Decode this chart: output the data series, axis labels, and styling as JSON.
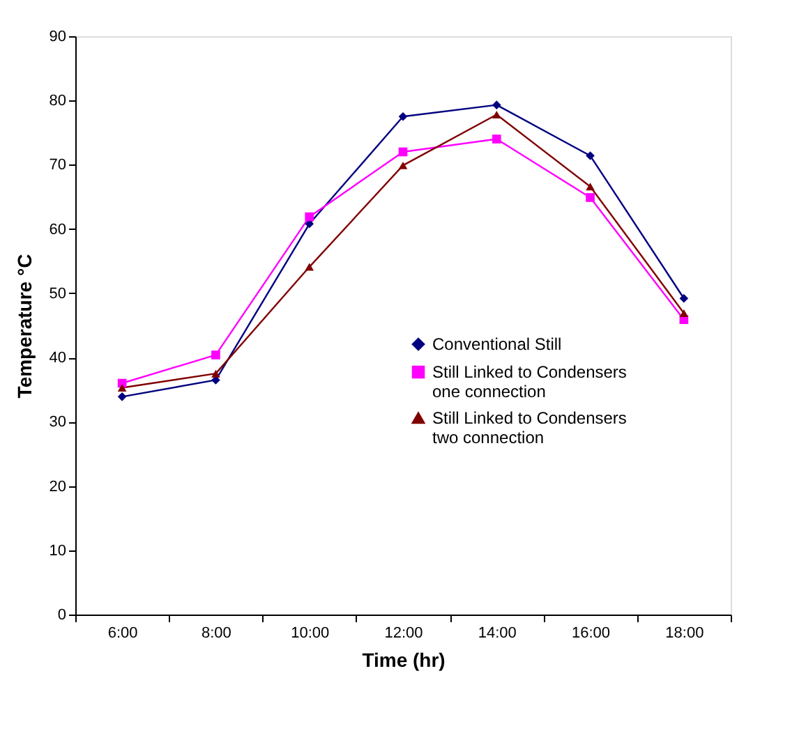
{
  "chart_data": {
    "type": "line",
    "xlabel": "Time (hr)",
    "ylabel": "Temperature  °C",
    "categories": [
      "6:00",
      "8:00",
      "10:00",
      "12:00",
      "14:00",
      "16:00",
      "18:00"
    ],
    "ylim": [
      0,
      90
    ],
    "yticks": [
      0,
      10,
      20,
      30,
      40,
      50,
      60,
      70,
      80,
      90
    ],
    "grid": false,
    "legend": "right",
    "line_style": "solid",
    "series": [
      {
        "name": "Conventional Still",
        "color": "#000080",
        "marker": "diamond",
        "values": [
          33.9,
          36.5,
          60.8,
          77.5,
          79.3,
          71.4,
          49.2
        ]
      },
      {
        "name": "Still Linked to Condensers\none connection",
        "color": "#ff00ff",
        "marker": "square",
        "values": [
          36.0,
          40.4,
          61.9,
          72.0,
          74.0,
          64.9,
          45.9
        ]
      },
      {
        "name": "Still Linked to Condensers\ntwo connection",
        "color": "#800000",
        "marker": "triangle",
        "values": [
          35.3,
          37.5,
          54.1,
          69.9,
          77.8,
          66.6,
          46.9
        ]
      }
    ]
  }
}
